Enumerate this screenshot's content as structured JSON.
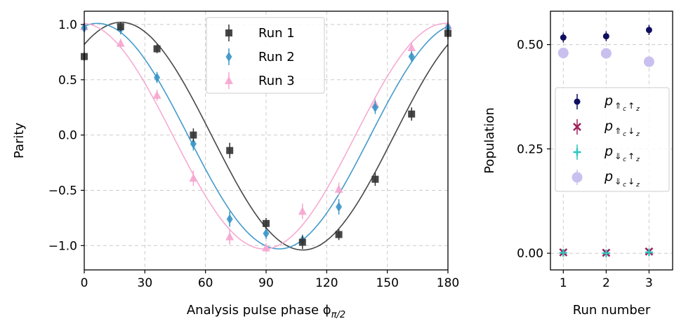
{
  "chart_data": [
    {
      "type": "scatter",
      "title": "",
      "xlabel": "Analysis pulse phase ϕ",
      "xlabel_subscript": "π/2",
      "ylabel": "Parity",
      "xlim": [
        0,
        180
      ],
      "ylim": [
        -1.22,
        1.12
      ],
      "xticks": [
        0,
        30,
        60,
        90,
        120,
        150,
        180
      ],
      "yticks": [
        1.0,
        0.5,
        0.0,
        -0.5,
        -1.0
      ],
      "ytick_labels": [
        "1.0",
        "0.5",
        "0.0",
        "−0.5",
        "−1.0"
      ],
      "grid": true,
      "legend_position": "top-center",
      "series": [
        {
          "name": "Run 1",
          "color": "#333333",
          "marker": "square",
          "x": [
            0,
            18,
            36,
            54,
            72,
            90,
            108,
            126,
            144,
            162,
            180
          ],
          "y": [
            0.71,
            0.98,
            0.78,
            0.0,
            -0.14,
            -0.8,
            -0.97,
            -0.9,
            -0.4,
            0.19,
            0.92
          ],
          "err": [
            0.04,
            0.04,
            0.04,
            0.06,
            0.07,
            0.05,
            0.06,
            0.05,
            0.06,
            0.06,
            0.05
          ],
          "fit": {
            "amplitude": 1.03,
            "center_deg": 18.2,
            "offset": -0.01
          }
        },
        {
          "name": "Run 2",
          "color": "#3a96c8",
          "marker": "diamond",
          "x": [
            0,
            18,
            36,
            54,
            72,
            90,
            108,
            126,
            144,
            162,
            180
          ],
          "y": [
            0.97,
            0.96,
            0.52,
            -0.08,
            -0.76,
            -0.89,
            -0.95,
            -0.65,
            0.25,
            0.71,
            0.97
          ],
          "err": [
            0.04,
            0.05,
            0.05,
            0.06,
            0.07,
            0.05,
            0.05,
            0.07,
            0.06,
            0.05,
            0.04
          ],
          "fit": {
            "amplitude": 1.02,
            "center_deg": 6.5,
            "offset": -0.01
          }
        },
        {
          "name": "Run 3",
          "color": "#f5a6cf",
          "marker": "triangle",
          "x": [
            0,
            18,
            36,
            54,
            72,
            90,
            108,
            126,
            144,
            162,
            180
          ],
          "y": [
            0.98,
            0.83,
            0.36,
            -0.39,
            -0.92,
            -1.02,
            -0.69,
            -0.49,
            0.28,
            0.79,
            0.99
          ],
          "err": [
            0.04,
            0.04,
            0.05,
            0.07,
            0.07,
            0.04,
            0.07,
            0.06,
            0.05,
            0.05,
            0.04
          ],
          "fit": {
            "amplitude": 1.02,
            "center_deg": -1.0,
            "offset": -0.01
          }
        }
      ]
    },
    {
      "type": "scatter",
      "title": "",
      "xlabel": "Run number",
      "ylabel": "Population",
      "xlim": [
        0.7,
        3.55
      ],
      "ylim": [
        -0.04,
        0.58
      ],
      "xticks": [
        1,
        2,
        3
      ],
      "yticks": [
        0.0,
        0.25,
        0.5
      ],
      "ytick_labels": [
        "0.00",
        "0.25",
        "0.50"
      ],
      "grid": true,
      "legend_position": "center-right",
      "series": [
        {
          "name_parts": [
            "p",
            "⇑",
            "c",
            "↑",
            "z"
          ],
          "color": "#0f0f5f",
          "marker": "circle-small",
          "x": [
            1,
            2,
            3
          ],
          "y": [
            0.517,
            0.52,
            0.535
          ],
          "err": [
            0.012,
            0.012,
            0.012
          ]
        },
        {
          "name_parts": [
            "p",
            "⇑",
            "c",
            "↓",
            "z"
          ],
          "color": "#a0205a",
          "marker": "x",
          "x": [
            1,
            2,
            3
          ],
          "y": [
            0.002,
            0.001,
            0.004
          ],
          "err": [
            0.003,
            0.003,
            0.003
          ]
        },
        {
          "name_parts": [
            "p",
            "⇓",
            "c",
            "↑",
            "z"
          ],
          "color": "#2cc5c0",
          "marker": "plus",
          "x": [
            1,
            2,
            3
          ],
          "y": [
            0.001,
            0.0,
            0.002
          ],
          "err": [
            0.003,
            0.003,
            0.003
          ]
        },
        {
          "name_parts": [
            "p",
            "⇓",
            "c",
            "↓",
            "z"
          ],
          "color": "#c9c0ef",
          "marker": "circle-large",
          "x": [
            1,
            2,
            3
          ],
          "y": [
            0.48,
            0.479,
            0.459
          ],
          "err": [
            0.01,
            0.01,
            0.01
          ]
        }
      ]
    }
  ]
}
